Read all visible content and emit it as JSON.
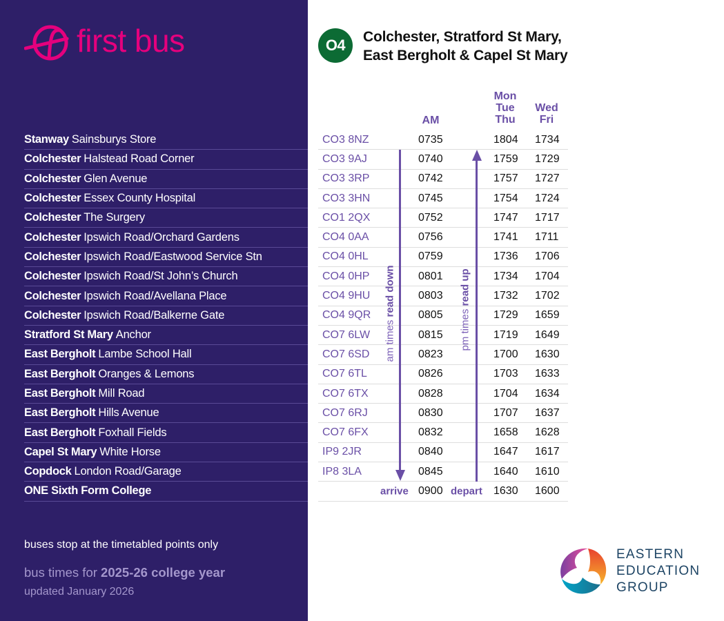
{
  "brand": {
    "name": "first bus",
    "color": "#e5007d",
    "panel_color": "#2e1f68"
  },
  "route": {
    "number": "O4",
    "badge_color": "#0c6b34",
    "title_line1": "Colchester, Stratford St Mary,",
    "title_line2": "East Bergholt & Capel St Mary"
  },
  "columns": {
    "am": "AM",
    "mtt_line1": "Mon",
    "mtt_line2": "Tue",
    "mtt_line3": "Thu",
    "wf_line1": "Wed",
    "wf_line2": "Fri"
  },
  "labels": {
    "am_read": "am times ",
    "am_read_bold": "read down",
    "pm_read": "pm times ",
    "pm_read_bold": "read up",
    "arrive": "arrive",
    "depart": "depart"
  },
  "stops": [
    {
      "town": "Stanway",
      "place": "Sainsburys Store",
      "postcode": "CO3 8NZ",
      "am": "0735",
      "mon_tue_thu": "1804",
      "wed_fri": "1734"
    },
    {
      "town": "Colchester",
      "place": "Halstead Road Corner",
      "postcode": "CO3 9AJ",
      "am": "0740",
      "mon_tue_thu": "1759",
      "wed_fri": "1729"
    },
    {
      "town": "Colchester",
      "place": "Glen Avenue",
      "postcode": "CO3 3RP",
      "am": "0742",
      "mon_tue_thu": "1757",
      "wed_fri": "1727"
    },
    {
      "town": "Colchester",
      "place": "Essex County Hospital",
      "postcode": "CO3 3HN",
      "am": "0745",
      "mon_tue_thu": "1754",
      "wed_fri": "1724"
    },
    {
      "town": "Colchester",
      "place": "The Surgery",
      "postcode": "CO1 2QX",
      "am": "0752",
      "mon_tue_thu": "1747",
      "wed_fri": "1717"
    },
    {
      "town": "Colchester",
      "place": "Ipswich Road/Orchard Gardens",
      "postcode": "CO4 0AA",
      "am": "0756",
      "mon_tue_thu": "1741",
      "wed_fri": "1711"
    },
    {
      "town": "Colchester",
      "place": "Ipswich Road/Eastwood Service Stn",
      "postcode": "CO4 0HL",
      "am": "0759",
      "mon_tue_thu": "1736",
      "wed_fri": "1706"
    },
    {
      "town": "Colchester",
      "place": "Ipswich Road/St John’s Church",
      "postcode": "CO4 0HP",
      "am": "0801",
      "mon_tue_thu": "1734",
      "wed_fri": "1704"
    },
    {
      "town": "Colchester",
      "place": "Ipswich Road/Avellana Place",
      "postcode": "CO4 9HU",
      "am": "0803",
      "mon_tue_thu": "1732",
      "wed_fri": "1702"
    },
    {
      "town": "Colchester",
      "place": "Ipswich Road/Balkerne Gate",
      "postcode": "CO4 9QR",
      "am": "0805",
      "mon_tue_thu": "1729",
      "wed_fri": "1659"
    },
    {
      "town": "Stratford St Mary",
      "place": "Anchor",
      "postcode": "CO7 6LW",
      "am": "0815",
      "mon_tue_thu": "1719",
      "wed_fri": "1649"
    },
    {
      "town": "East Bergholt",
      "place": "Lambe School Hall",
      "postcode": "CO7 6SD",
      "am": "0823",
      "mon_tue_thu": "1700",
      "wed_fri": "1630"
    },
    {
      "town": "East Bergholt",
      "place": "Oranges & Lemons",
      "postcode": "CO7 6TL",
      "am": "0826",
      "mon_tue_thu": "1703",
      "wed_fri": "1633"
    },
    {
      "town": "East Bergholt",
      "place": "Mill Road",
      "postcode": "CO7 6TX",
      "am": "0828",
      "mon_tue_thu": "1704",
      "wed_fri": "1634"
    },
    {
      "town": "East Bergholt",
      "place": "Hills Avenue",
      "postcode": "CO7 6RJ",
      "am": "0830",
      "mon_tue_thu": "1707",
      "wed_fri": "1637"
    },
    {
      "town": "East Bergholt",
      "place": "Foxhall Fields",
      "postcode": "CO7 6FX",
      "am": "0832",
      "mon_tue_thu": "1658",
      "wed_fri": "1628"
    },
    {
      "town": "Capel St Mary",
      "place": "White Horse",
      "postcode": "IP9 2JR",
      "am": "0840",
      "mon_tue_thu": "1647",
      "wed_fri": "1617"
    },
    {
      "town": "Copdock",
      "place": "London Road/Garage",
      "postcode": "IP8 3LA",
      "am": "0845",
      "mon_tue_thu": "1640",
      "wed_fri": "1610"
    },
    {
      "town": "ONE Sixth Form College",
      "place": "",
      "postcode": "",
      "am": "0900",
      "mon_tue_thu": "1630",
      "wed_fri": "1600"
    }
  ],
  "notes": {
    "stop_note": "buses stop at the timetabled points only",
    "year_prefix": "bus times for ",
    "year_bold": "2025-26 college year",
    "updated": "updated January 2026"
  },
  "partner": {
    "line1": "EASTERN",
    "line2": "EDUCATION",
    "line3": "GROUP"
  }
}
